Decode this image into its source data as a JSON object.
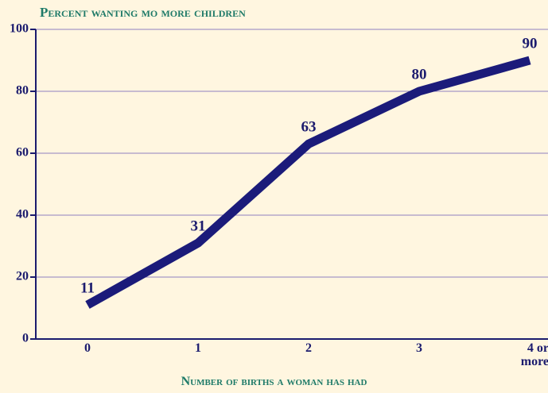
{
  "chart_data": {
    "type": "line",
    "title": "Percent wanting mo more children",
    "x_label": "Number of births a  woman has had",
    "categories": [
      "0",
      "1",
      "2",
      "3",
      "4 or more"
    ],
    "series": [
      {
        "name": "Percent wanting no more children",
        "color": "#1b1b7a",
        "values": [
          11,
          31,
          63,
          80,
          90
        ]
      }
    ],
    "ylim": [
      0,
      100
    ],
    "yticks": [
      0,
      20,
      40,
      60,
      80,
      100
    ],
    "grid": true
  }
}
